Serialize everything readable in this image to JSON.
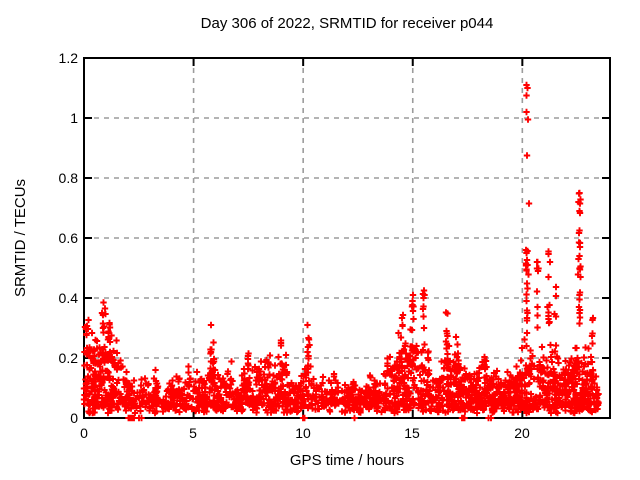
{
  "window": {
    "background": "#ffffff"
  },
  "chart_data": {
    "type": "scatter",
    "title": "Day 306 of 2022, SRMTID for receiver p044",
    "xlabel": "GPS time / hours",
    "ylabel": "SRMTID / TECUs",
    "series_name": "SRMTID",
    "xlim": [
      0,
      24
    ],
    "ylim": [
      0,
      1.2
    ],
    "xticks": [
      0,
      5,
      10,
      15,
      20
    ],
    "yticks": [
      0,
      0.2,
      0.4,
      0.6,
      0.8,
      1,
      1.2
    ],
    "xtick_labels": [
      "0",
      "5",
      "10",
      "15",
      "20"
    ],
    "ytick_labels": [
      "0",
      "0.2",
      "0.4",
      "0.6",
      "0.8",
      "1",
      "1.2"
    ],
    "grid": {
      "visible": true,
      "color": "#9c9c9c",
      "dash": [
        5,
        5
      ]
    },
    "axis_color": "#000000",
    "marker": {
      "shape": "plus",
      "color": "#ff0000",
      "half_size": 3.2,
      "stroke_width": 1.9
    },
    "legend": {
      "visible": false
    },
    "seed": 306,
    "n_points": 2150,
    "band_floor": 0.015,
    "band_envelope": [
      [
        0.0,
        0.3
      ],
      [
        0.3,
        0.26
      ],
      [
        0.6,
        0.27
      ],
      [
        0.9,
        0.3
      ],
      [
        1.2,
        0.3
      ],
      [
        1.5,
        0.22
      ],
      [
        1.8,
        0.16
      ],
      [
        2.1,
        0.13
      ],
      [
        2.4,
        0.11
      ],
      [
        2.7,
        0.12
      ],
      [
        3.0,
        0.12
      ],
      [
        3.3,
        0.15
      ],
      [
        3.6,
        0.1
      ],
      [
        3.9,
        0.11
      ],
      [
        4.2,
        0.14
      ],
      [
        4.5,
        0.11
      ],
      [
        4.8,
        0.16
      ],
      [
        5.1,
        0.13
      ],
      [
        5.4,
        0.12
      ],
      [
        5.7,
        0.16
      ],
      [
        6.0,
        0.13
      ],
      [
        6.3,
        0.11
      ],
      [
        6.6,
        0.16
      ],
      [
        6.9,
        0.14
      ],
      [
        7.2,
        0.13
      ],
      [
        7.5,
        0.19
      ],
      [
        7.8,
        0.14
      ],
      [
        8.1,
        0.17
      ],
      [
        8.4,
        0.18
      ],
      [
        8.7,
        0.15
      ],
      [
        9.0,
        0.2
      ],
      [
        9.3,
        0.17
      ],
      [
        9.6,
        0.14
      ],
      [
        9.9,
        0.15
      ],
      [
        10.2,
        0.2
      ],
      [
        10.5,
        0.14
      ],
      [
        10.8,
        0.11
      ],
      [
        11.1,
        0.12
      ],
      [
        11.4,
        0.14
      ],
      [
        11.7,
        0.1
      ],
      [
        12.0,
        0.11
      ],
      [
        12.3,
        0.12
      ],
      [
        12.6,
        0.09
      ],
      [
        12.9,
        0.11
      ],
      [
        13.2,
        0.13
      ],
      [
        13.5,
        0.12
      ],
      [
        13.8,
        0.16
      ],
      [
        14.1,
        0.18
      ],
      [
        14.4,
        0.24
      ],
      [
        14.7,
        0.22
      ],
      [
        15.0,
        0.3
      ],
      [
        15.3,
        0.26
      ],
      [
        15.6,
        0.28
      ],
      [
        15.9,
        0.18
      ],
      [
        16.2,
        0.16
      ],
      [
        16.5,
        0.24
      ],
      [
        16.8,
        0.18
      ],
      [
        17.1,
        0.2
      ],
      [
        17.4,
        0.15
      ],
      [
        17.7,
        0.13
      ],
      [
        18.0,
        0.15
      ],
      [
        18.3,
        0.18
      ],
      [
        18.6,
        0.13
      ],
      [
        18.9,
        0.15
      ],
      [
        19.2,
        0.13
      ],
      [
        19.5,
        0.13
      ],
      [
        19.8,
        0.15
      ],
      [
        20.1,
        0.22
      ],
      [
        20.4,
        0.22
      ],
      [
        20.7,
        0.2
      ],
      [
        21.0,
        0.2
      ],
      [
        21.3,
        0.22
      ],
      [
        21.6,
        0.2
      ],
      [
        21.9,
        0.17
      ],
      [
        22.2,
        0.17
      ],
      [
        22.5,
        0.22
      ],
      [
        22.8,
        0.22
      ],
      [
        23.0,
        0.2
      ],
      [
        23.2,
        0.22
      ],
      [
        23.4,
        0.18
      ],
      [
        23.5,
        0.15
      ]
    ],
    "density": [
      [
        0,
        3.2
      ],
      [
        0.5,
        3.2
      ],
      [
        1,
        3.0
      ],
      [
        1.5,
        2.4
      ],
      [
        2,
        1.6
      ],
      [
        3,
        1.3
      ],
      [
        4,
        1.3
      ],
      [
        5,
        1.4
      ],
      [
        6,
        1.4
      ],
      [
        7,
        1.6
      ],
      [
        8,
        1.8
      ],
      [
        9,
        1.8
      ],
      [
        10,
        1.6
      ],
      [
        11,
        1.3
      ],
      [
        12,
        1.3
      ],
      [
        13,
        1.6
      ],
      [
        14,
        2.2
      ],
      [
        15,
        2.4
      ],
      [
        16,
        2.0
      ],
      [
        17,
        2.0
      ],
      [
        18,
        2.0
      ],
      [
        19,
        2.0
      ],
      [
        20,
        2.4
      ],
      [
        21,
        2.4
      ],
      [
        22,
        2.6
      ],
      [
        22.8,
        2.8
      ],
      [
        23.3,
        2.4
      ],
      [
        23.5,
        1.2
      ]
    ],
    "columns": [
      {
        "x": 0.9,
        "y0": 0.1,
        "y1": 0.37,
        "n": 10
      },
      {
        "x": 1.15,
        "y0": 0.12,
        "y1": 0.33,
        "n": 10
      },
      {
        "x": 3.3,
        "y0": 0.05,
        "y1": 0.17,
        "n": 6
      },
      {
        "x": 4.8,
        "y0": 0.06,
        "y1": 0.2,
        "n": 6
      },
      {
        "x": 5.8,
        "y0": 0.12,
        "y1": 0.31,
        "n": 10
      },
      {
        "x": 5.92,
        "y0": 0.1,
        "y1": 0.27,
        "n": 7
      },
      {
        "x": 6.7,
        "y0": 0.06,
        "y1": 0.2,
        "n": 6
      },
      {
        "x": 7.5,
        "y0": 0.08,
        "y1": 0.25,
        "n": 7
      },
      {
        "x": 8.3,
        "y0": 0.07,
        "y1": 0.21,
        "n": 6
      },
      {
        "x": 9.0,
        "y0": 0.1,
        "y1": 0.285,
        "n": 8
      },
      {
        "x": 10.25,
        "y0": 0.1,
        "y1": 0.31,
        "n": 9
      },
      {
        "x": 11.45,
        "y0": 0.05,
        "y1": 0.18,
        "n": 5
      },
      {
        "x": 13.8,
        "y0": 0.07,
        "y1": 0.22,
        "n": 6
      },
      {
        "x": 14.5,
        "y0": 0.12,
        "y1": 0.35,
        "n": 9
      },
      {
        "x": 15.0,
        "y0": 0.15,
        "y1": 0.41,
        "n": 10
      },
      {
        "x": 15.5,
        "y0": 0.15,
        "y1": 0.425,
        "n": 9
      },
      {
        "x": 16.55,
        "y0": 0.12,
        "y1": 0.35,
        "n": 9
      },
      {
        "x": 17.0,
        "y0": 0.1,
        "y1": 0.3,
        "n": 7
      },
      {
        "x": 18.25,
        "y0": 0.08,
        "y1": 0.26,
        "n": 6
      },
      {
        "x": 19.7,
        "y0": 0.06,
        "y1": 0.19,
        "n": 5
      },
      {
        "x": 20.2,
        "y0": 0.28,
        "y1": 0.56,
        "n": 14
      },
      {
        "x": 20.7,
        "y0": 0.3,
        "y1": 0.52,
        "n": 8
      },
      {
        "x": 21.2,
        "y0": 0.3,
        "y1": 0.56,
        "n": 10
      },
      {
        "x": 21.5,
        "y0": 0.1,
        "y1": 0.44,
        "n": 8
      },
      {
        "x": 22.62,
        "y0": 0.3,
        "y1": 0.75,
        "n": 16
      },
      {
        "x": 23.2,
        "y0": 0.1,
        "y1": 0.39,
        "n": 8
      }
    ],
    "outliers": [
      [
        20.18,
        1.11
      ],
      [
        20.23,
        1.1
      ],
      [
        20.2,
        1.075
      ],
      [
        20.19,
        1.02
      ],
      [
        20.26,
        0.995
      ],
      [
        20.21,
        0.875
      ],
      [
        20.3,
        0.715
      ],
      [
        20.16,
        0.56
      ],
      [
        20.22,
        0.527
      ],
      [
        20.24,
        0.51
      ],
      [
        20.2,
        0.495
      ],
      [
        20.27,
        0.478
      ],
      [
        22.6,
        0.75
      ],
      [
        22.56,
        0.72
      ],
      [
        22.63,
        0.715
      ],
      [
        22.6,
        0.69
      ],
      [
        22.62,
        0.683
      ],
      [
        22.6,
        0.625
      ],
      [
        22.62,
        0.57
      ],
      [
        22.57,
        0.53
      ],
      [
        22.54,
        0.478
      ],
      [
        22.66,
        0.505
      ],
      [
        22.64,
        0.495
      ],
      [
        0.9,
        0.385
      ],
      [
        0.96,
        0.365
      ],
      [
        15.52,
        0.425
      ],
      [
        15.02,
        0.41
      ],
      [
        16.52,
        0.352
      ],
      [
        21.2,
        0.555
      ],
      [
        20.7,
        0.52
      ],
      [
        21.26,
        0.52
      ]
    ],
    "zero_markers": [
      2.04,
      2.07,
      2.1,
      2.13,
      2.16,
      2.19,
      2.22,
      2.28,
      2.5,
      2.62,
      10.0,
      10.06,
      12.35,
      17.25,
      17.3,
      17.36,
      18.45,
      18.56
    ]
  }
}
